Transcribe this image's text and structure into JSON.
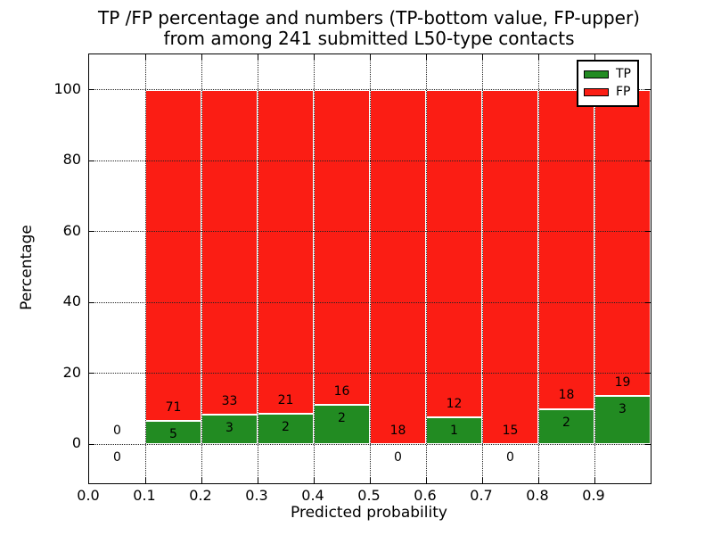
{
  "figure": {
    "title_line1": "TP /FP percentage and numbers (TP-bottom value, FP-upper)",
    "title_line2": "from among 241 submitted L50-type contacts"
  },
  "chart_data": {
    "type": "bar",
    "subtype": "stacked-percentage-histogram",
    "title": "TP /FP percentage and numbers (TP-bottom value, FP-upper)\nfrom among 241 submitted L50-type contacts",
    "xlabel": "Predicted probability",
    "ylabel": "Percentage",
    "xlim": [
      0.0,
      1.0
    ],
    "ylim": [
      -11,
      110
    ],
    "x_ticks": [
      0.0,
      0.1,
      0.2,
      0.3,
      0.4,
      0.5,
      0.6,
      0.7,
      0.8,
      0.9
    ],
    "x_tick_labels": [
      "0.0",
      "0.1",
      "0.2",
      "0.3",
      "0.4",
      "0.5",
      "0.6",
      "0.7",
      "0.8",
      "0.9"
    ],
    "y_ticks": [
      0,
      20,
      40,
      60,
      80,
      100
    ],
    "y_tick_labels": [
      "0",
      "20",
      "40",
      "60",
      "80",
      "100"
    ],
    "grid": "dotted",
    "legend_position": "upper-right",
    "total_contacts": 241,
    "bin_edges": [
      0.0,
      0.1,
      0.2,
      0.3,
      0.4,
      0.5,
      0.6,
      0.7,
      0.8,
      0.9,
      1.0
    ],
    "series": [
      {
        "name": "TP",
        "color": "#228b22",
        "counts": [
          0,
          5,
          3,
          2,
          2,
          0,
          1,
          0,
          2,
          3
        ]
      },
      {
        "name": "FP",
        "color": "#fb1d14",
        "counts": [
          0,
          71,
          33,
          21,
          16,
          18,
          12,
          15,
          18,
          19
        ]
      }
    ],
    "legend": [
      {
        "label": "TP",
        "color": "#228b22"
      },
      {
        "label": "FP",
        "color": "#fb1d14"
      }
    ]
  },
  "colors": {
    "tp_green": "#228b22",
    "fp_red": "#fb1d14",
    "grid": "#222222",
    "frame": "#000000",
    "background": "#ffffff",
    "text": "#000000"
  }
}
